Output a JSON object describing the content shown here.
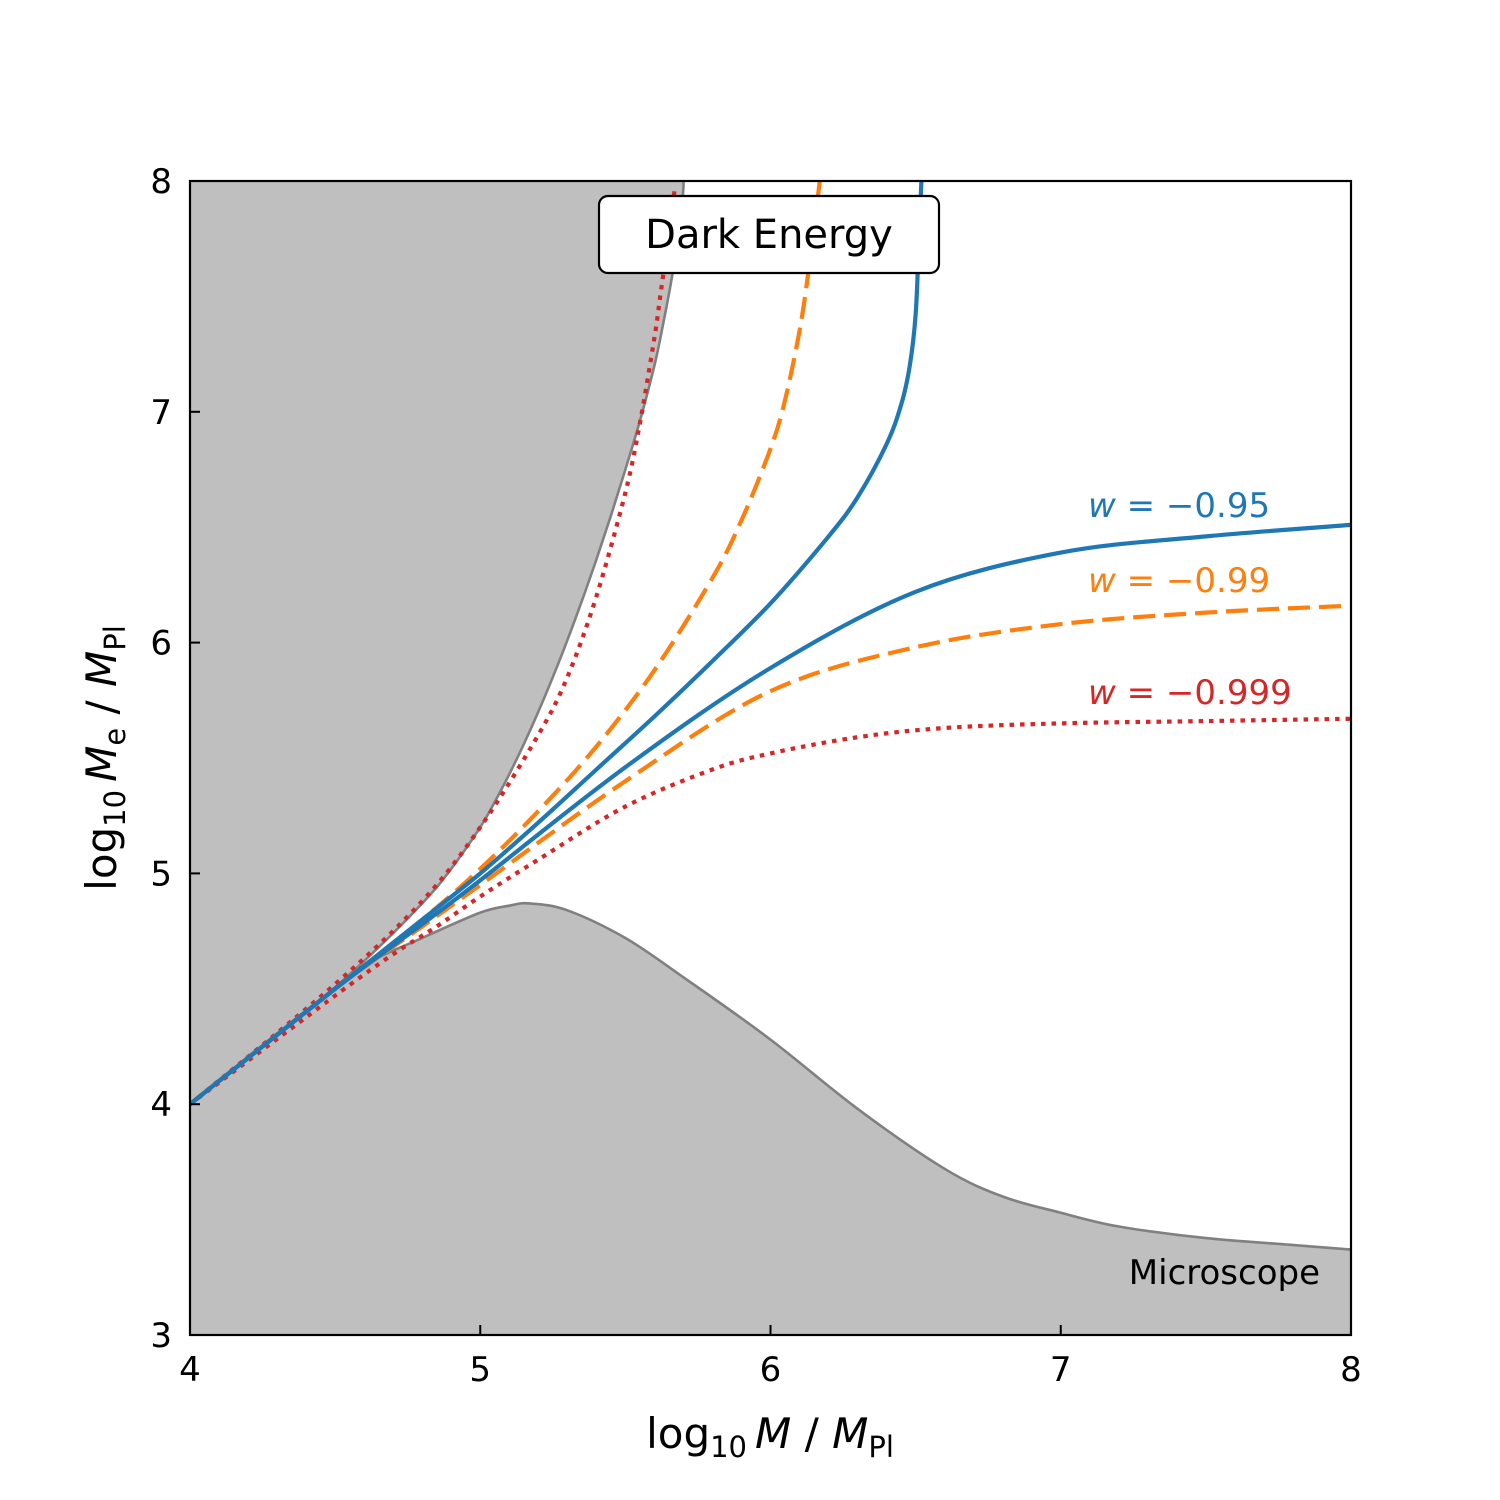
{
  "chart_data": {
    "type": "line",
    "title": "Dark Energy",
    "xlabel": {
      "base": "log",
      "sub": "10",
      "var": "M",
      "sep": " / ",
      "unit": "M",
      "unit_sub": "Pl"
    },
    "ylabel": {
      "base": "log",
      "sub": "10",
      "var": "M",
      "var_sub": "e",
      "sep": " / ",
      "unit": "M",
      "unit_sub": "Pl"
    },
    "xlim": [
      4,
      8
    ],
    "ylim": [
      3,
      8
    ],
    "xticks": [
      "4",
      "5",
      "6",
      "7",
      "8"
    ],
    "yticks": [
      "3",
      "4",
      "5",
      "6",
      "7",
      "8"
    ],
    "grid": false,
    "excluded_regions": [
      {
        "name": "",
        "color": "#bfbfbf",
        "edge_color": "#808080",
        "boundary": {
          "x": [
            4.0,
            4.2,
            4.4,
            4.6,
            4.8,
            4.9,
            5.0,
            5.05,
            5.1,
            5.15,
            5.2,
            5.25,
            5.3,
            5.35,
            5.4,
            5.45,
            5.5,
            5.55,
            5.6,
            5.63,
            5.66,
            5.68,
            5.695,
            5.7,
            5.7
          ],
          "y": [
            4.0,
            4.2,
            4.4,
            4.62,
            4.87,
            5.02,
            5.2,
            5.31,
            5.43,
            5.56,
            5.7,
            5.85,
            6.01,
            6.18,
            6.36,
            6.55,
            6.75,
            6.96,
            7.2,
            7.38,
            7.58,
            7.75,
            7.9,
            7.97,
            8.0
          ]
        }
      },
      {
        "name": "Microscope",
        "color": "#bfbfbf",
        "edge_color": "#808080",
        "boundary": {
          "x": [
            4.0,
            4.2,
            4.4,
            4.6,
            4.8,
            5.0,
            5.1,
            5.17,
            5.3,
            5.5,
            5.7,
            6.0,
            6.3,
            6.6,
            6.8,
            7.0,
            7.2,
            7.5,
            7.8,
            8.0
          ],
          "y": [
            4.0,
            4.2,
            4.4,
            4.6,
            4.72,
            4.83,
            4.86,
            4.87,
            4.84,
            4.72,
            4.55,
            4.28,
            3.98,
            3.72,
            3.6,
            3.53,
            3.47,
            3.42,
            3.39,
            3.37
          ]
        }
      }
    ],
    "series": [
      {
        "name": "w = −0.95",
        "w": "−0.95",
        "color": "#1f77b4",
        "dash": "solid",
        "upper": {
          "x": [
            4.0,
            4.5,
            4.8,
            5.0,
            5.2,
            5.4,
            5.6,
            5.8,
            6.0,
            6.2,
            6.3,
            6.4,
            6.45,
            6.48,
            6.5,
            6.51,
            6.52
          ],
          "y": [
            4.0,
            4.5,
            4.8,
            5.0,
            5.22,
            5.45,
            5.68,
            5.92,
            6.17,
            6.46,
            6.63,
            6.86,
            7.03,
            7.2,
            7.42,
            7.7,
            8.0
          ]
        },
        "lower": {
          "x": [
            4.0,
            4.5,
            4.8,
            5.0,
            5.5,
            6.0,
            6.5,
            7.0,
            7.5,
            8.0
          ],
          "y": [
            4.0,
            4.5,
            4.78,
            4.97,
            5.46,
            5.89,
            6.22,
            6.39,
            6.46,
            6.51
          ]
        }
      },
      {
        "name": "w = −0.99",
        "w": "−0.99",
        "color": "#ff7f0e",
        "dash": "dashed",
        "upper": {
          "x": [
            4.0,
            4.5,
            4.8,
            5.0,
            5.2,
            5.4,
            5.6,
            5.8,
            5.9,
            6.0,
            6.05,
            6.1,
            6.13,
            6.15,
            6.17
          ],
          "y": [
            4.0,
            4.5,
            4.8,
            5.02,
            5.27,
            5.55,
            5.88,
            6.28,
            6.53,
            6.84,
            7.05,
            7.35,
            7.6,
            7.8,
            8.0
          ]
        },
        "lower": {
          "x": [
            4.0,
            4.5,
            4.8,
            5.0,
            5.5,
            6.0,
            6.5,
            7.0,
            7.5,
            8.0
          ],
          "y": [
            4.0,
            4.5,
            4.77,
            4.95,
            5.4,
            5.79,
            5.98,
            6.08,
            6.13,
            6.16
          ]
        }
      },
      {
        "name": "w = −0.999",
        "w": "−0.999",
        "color": "#d62728",
        "dash": "dotted",
        "upper": {
          "x": [
            4.0,
            4.5,
            4.8,
            5.0,
            5.2,
            5.3,
            5.4,
            5.5,
            5.55,
            5.6,
            5.62,
            5.64,
            5.66,
            5.67
          ],
          "y": [
            4.0,
            4.52,
            4.88,
            5.2,
            5.6,
            5.85,
            6.2,
            6.65,
            6.95,
            7.32,
            7.5,
            7.68,
            7.88,
            7.96
          ]
        },
        "lower": {
          "x": [
            4.0,
            4.5,
            4.7,
            4.85,
            5.0,
            5.2,
            5.5,
            5.8,
            6.0,
            6.3,
            6.6,
            7.0,
            7.5,
            8.0
          ],
          "y": [
            4.0,
            4.47,
            4.65,
            4.77,
            4.9,
            5.06,
            5.29,
            5.45,
            5.52,
            5.59,
            5.63,
            5.65,
            5.66,
            5.67
          ]
        }
      }
    ],
    "annotations": {
      "region_label": "Microscope",
      "w_prefix": "w",
      "w_eq": " = "
    }
  }
}
